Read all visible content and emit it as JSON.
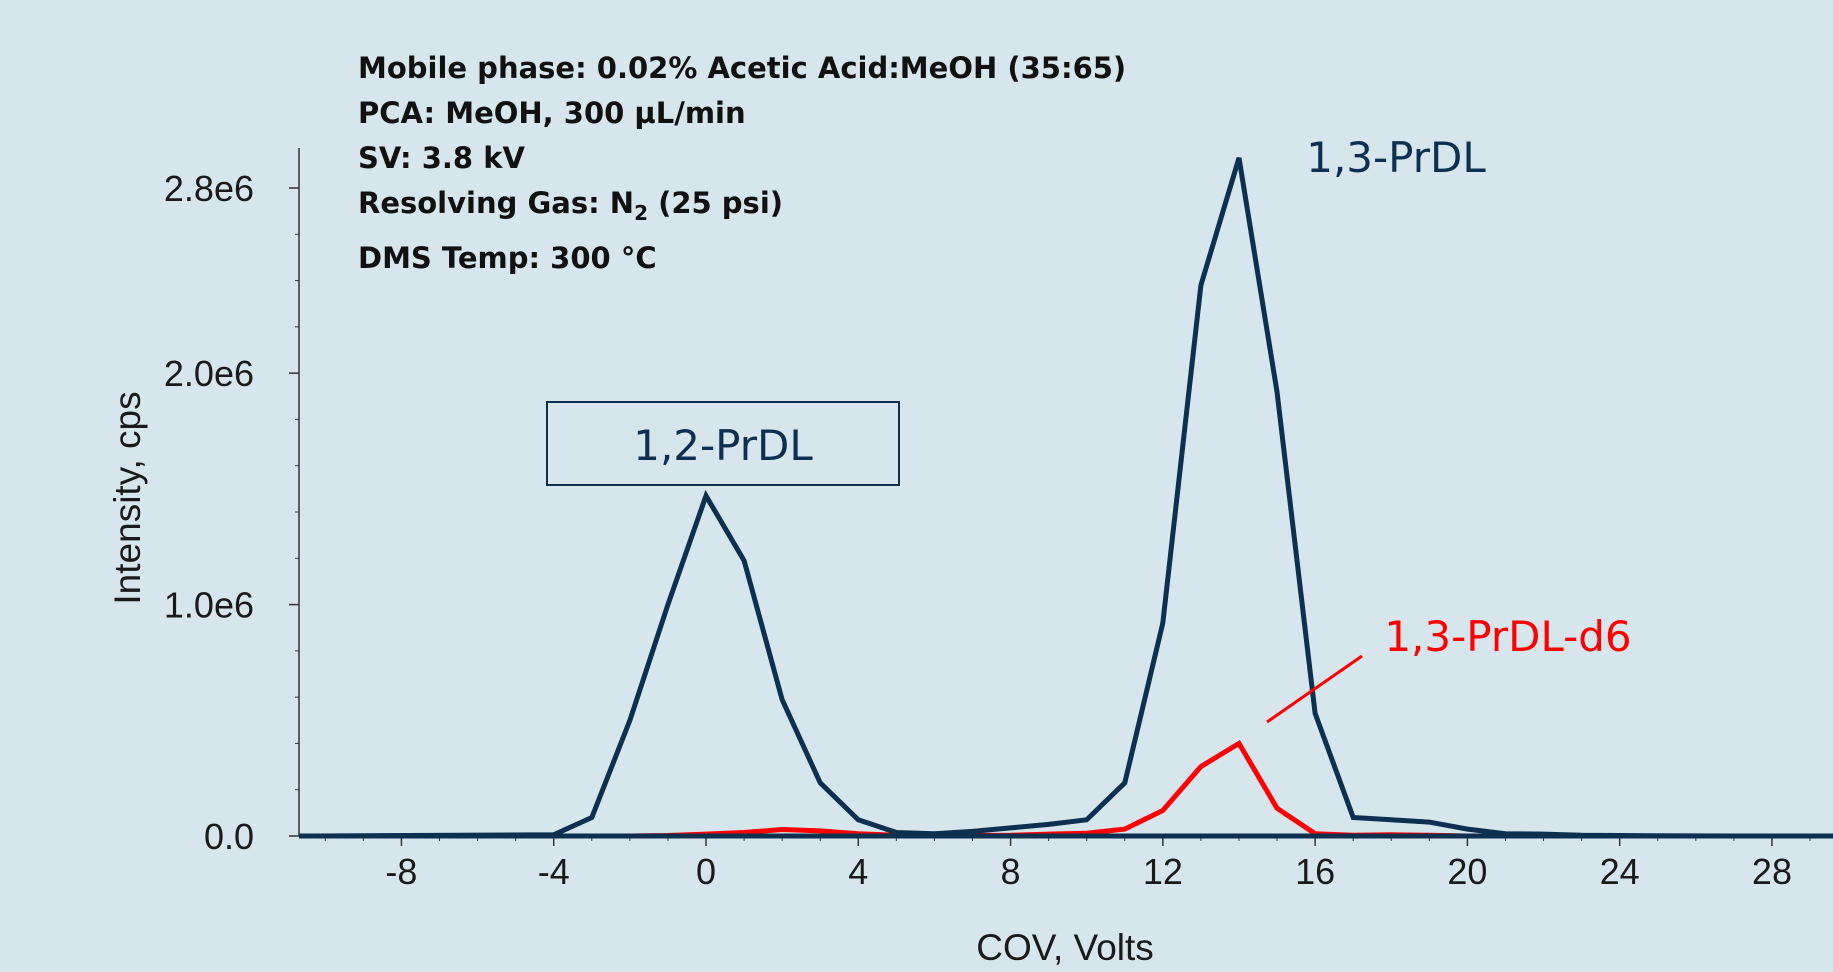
{
  "conditions": {
    "mobile_phase": "Mobile phase: 0.02% Acetic Acid:MeOH (35:65)",
    "pca": "PCA: MeOH, 300 µL/min",
    "sv": "SV: 3.8 kV",
    "resolving_gas_prefix": "Resolving Gas: N",
    "resolving_gas_sub": "2",
    "resolving_gas_suffix": " (25 psi)",
    "dms_temp": "DMS Temp: 300 °C"
  },
  "colors": {
    "background": "#d6e6ec",
    "navy": "#0d3050",
    "red": "#ff0000"
  },
  "chart_data": {
    "type": "line",
    "xlabel": "COV, Volts",
    "ylabel": "Intensity, cps",
    "xlim": [
      -10.3,
      29.5
    ],
    "ylim": [
      0,
      3000000
    ],
    "x_ticks": [
      -8,
      -4,
      0,
      4,
      8,
      12,
      16,
      20,
      24,
      28
    ],
    "y_ticks": [
      {
        "value": 0,
        "label": "0.0"
      },
      {
        "value": 1000000,
        "label": "1.0e6"
      },
      {
        "value": 2000000,
        "label": "2.0e6"
      },
      {
        "value": 2800000,
        "label": "2.8e6"
      }
    ],
    "grid": false,
    "series": [
      {
        "name": "1,2-PrDL",
        "color": "#0d3050",
        "x": [
          -10.3,
          -4,
          -3,
          -2,
          -1,
          0,
          1,
          2,
          3,
          4,
          5,
          6,
          7,
          8,
          9,
          10,
          11,
          12,
          13,
          14,
          15,
          16,
          17,
          18,
          19,
          20,
          21,
          22,
          23,
          24,
          25,
          26,
          27,
          28,
          29.5
        ],
        "y": [
          0,
          5000,
          80000,
          500000,
          1000000,
          1470000,
          1190000,
          590000,
          230000,
          70000,
          15000,
          10000,
          20000,
          35000,
          50000,
          70000,
          230000,
          920000,
          2380000,
          2930000,
          1920000,
          530000,
          80000,
          70000,
          60000,
          30000,
          10000,
          8000,
          3000,
          2000,
          1000,
          500,
          0,
          0,
          0
        ]
      },
      {
        "name": "1,3-PrDL-d6",
        "color": "#ff0000",
        "x": [
          -10.3,
          -4,
          -3,
          -2,
          -1,
          0,
          1,
          2,
          3,
          4,
          5,
          6,
          7,
          8,
          9,
          10,
          11,
          12,
          13,
          14,
          15,
          16,
          17,
          18,
          19,
          20,
          21,
          22,
          23,
          24,
          25,
          26,
          27,
          28,
          29.5
        ],
        "y": [
          0,
          0,
          0,
          0,
          2000,
          8000,
          15000,
          28000,
          22000,
          10000,
          3000,
          2000,
          2000,
          3000,
          8000,
          12000,
          30000,
          110000,
          300000,
          400000,
          120000,
          10000,
          3000,
          5000,
          3000,
          0,
          0,
          0,
          0,
          0,
          0,
          0,
          0,
          0,
          0
        ]
      }
    ],
    "annotations": [
      {
        "text": "1,2-PrDL",
        "color": "#0d3050",
        "boxed": true
      },
      {
        "text": "1,3-PrDL",
        "color": "#0d3050",
        "boxed": false
      },
      {
        "text": "1,3-PrDL-d6",
        "color": "#ff0000",
        "boxed": false,
        "leader_line": true
      }
    ]
  }
}
